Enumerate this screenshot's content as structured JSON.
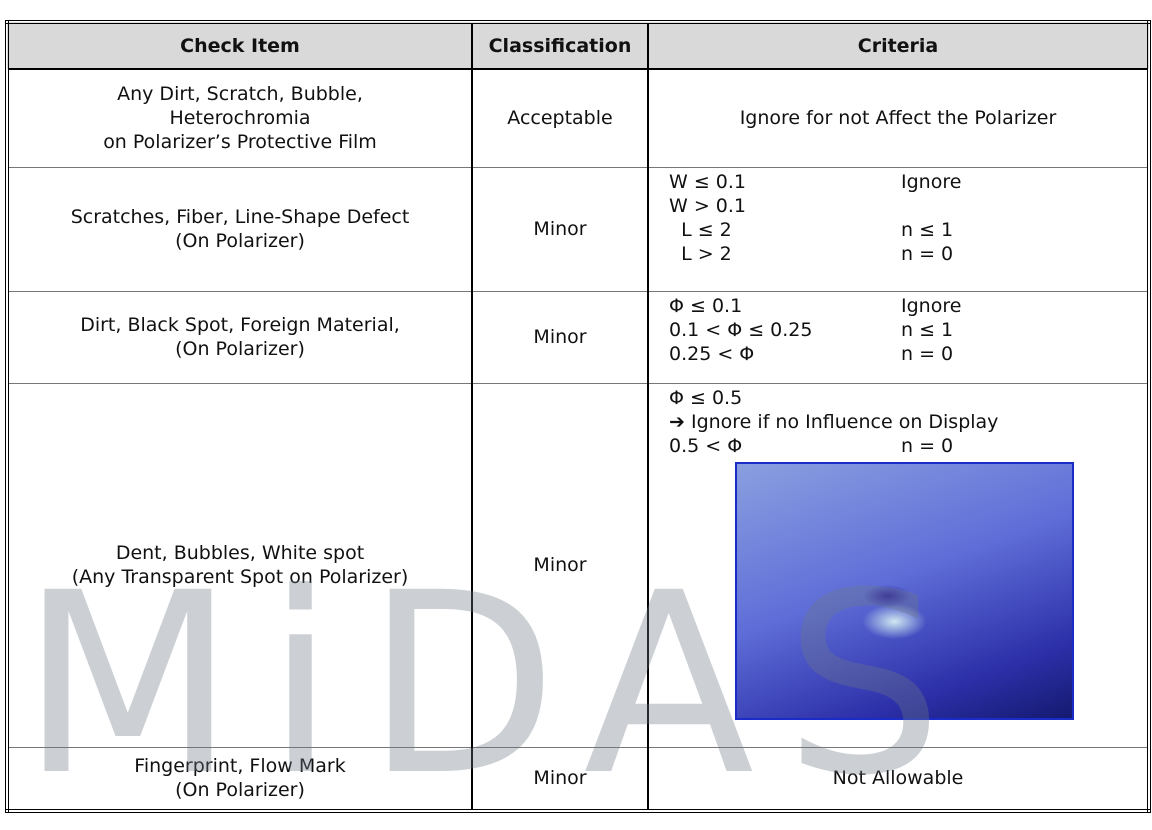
{
  "table": {
    "header": [
      "Check Item",
      "Classification",
      "Criteria"
    ],
    "rows": [
      {
        "check_item": [
          "Any Dirt, Scratch, Bubble,",
          "Heterochromia",
          "on Polarizer’s Protective Film"
        ],
        "classification": "Acceptable",
        "criteria": [
          [
            "Ignore for not Affect the Polarizer"
          ]
        ]
      },
      {
        "check_item": [
          "Scratches, Fiber, Line-Shape Defect",
          "(On Polarizer)"
        ],
        "classification": "Minor",
        "criteria": [
          [
            "W ≤ 0.1",
            "Ignore"
          ],
          [
            "W > 0.1"
          ],
          [
            "  L ≤ 2",
            "n ≤ 1"
          ],
          [
            "  L > 2",
            "n = 0"
          ]
        ]
      },
      {
        "check_item": [
          "Dirt, Black Spot, Foreign Material,",
          "(On Polarizer)"
        ],
        "classification": "Minor",
        "criteria": [
          [
            "Φ ≤ 0.1",
            "Ignore"
          ],
          [
            "0.1 < Φ ≤ 0.25",
            "n ≤ 1"
          ],
          [
            "0.25 < Φ",
            "n = 0"
          ]
        ]
      },
      {
        "check_item": [
          "Dent, Bubbles, White spot",
          "(Any Transparent Spot on Polarizer)"
        ],
        "classification": "Minor",
        "criteria": [
          [
            "Φ ≤ 0.5"
          ],
          [
            "➔ Ignore if no Influence on Display"
          ],
          [
            "0.5 < Φ",
            "n = 0"
          ]
        ]
      },
      {
        "check_item": [
          "Fingerprint, Flow Mark",
          "(On Polarizer)"
        ],
        "classification": "Minor",
        "criteria": [
          [
            "Not Allowable"
          ]
        ]
      }
    ]
  },
  "watermark": "MiDAS"
}
